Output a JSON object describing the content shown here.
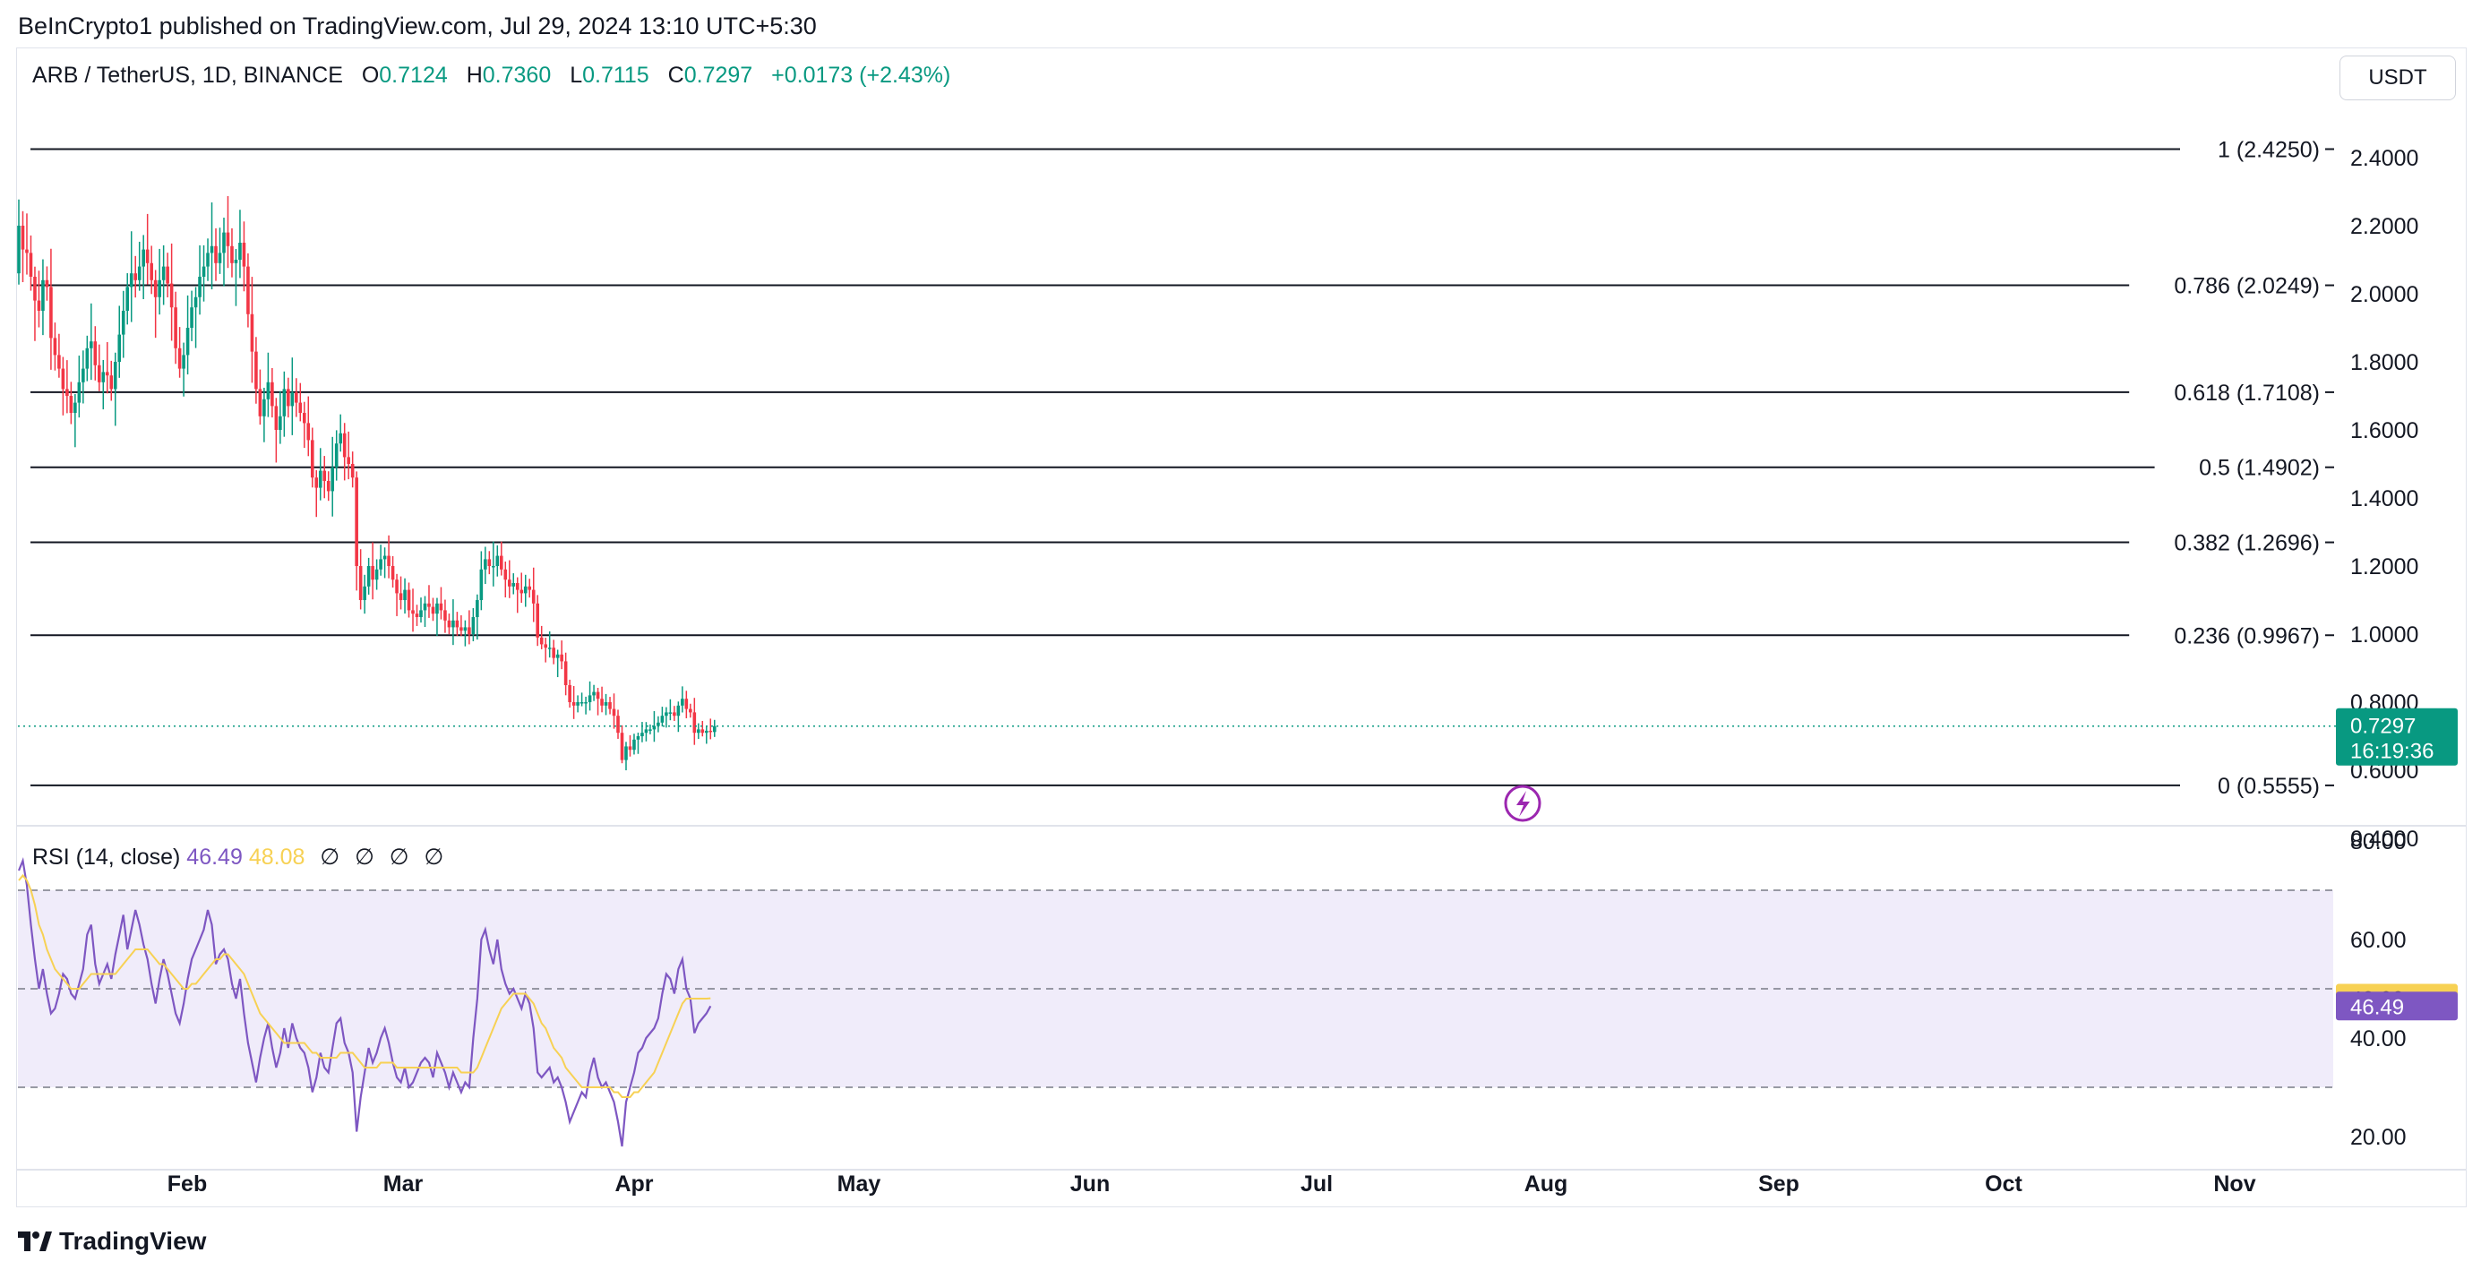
{
  "publisher_line": "BeInCrypto1 published on TradingView.com, Jul 29, 2024 13:10 UTC+5:30",
  "symbol": {
    "name": "ARB / TetherUS, 1D, BINANCE",
    "open_label": "O",
    "open": "0.7124",
    "high_label": "H",
    "high": "0.7360",
    "low_label": "L",
    "low": "0.7115",
    "close_label": "C",
    "close": "0.7297",
    "change": "+0.0173 (+2.43%)"
  },
  "unit_button": "USDT",
  "footer_brand": "TradingView",
  "colors": {
    "up": "#089981",
    "down": "#f23645",
    "rsi": "#7e57c2",
    "rsi_ma": "#f7d154",
    "rsi_band": "#f0ecfa",
    "price_tag": "#089981"
  },
  "chart_data": [
    {
      "type": "candlestick",
      "symbol": "ARB / TetherUS",
      "interval": "1D",
      "exchange": "BINANCE",
      "y_scale": "linear",
      "ylim": [
        0.4,
        2.5
      ],
      "y_ticks": [
        "2.4000",
        "2.2000",
        "2.0000",
        "1.8000",
        "1.6000",
        "1.4000",
        "1.2000",
        "1.0000",
        "0.8000",
        "0.6000",
        "0.4000"
      ],
      "x_ticks": [
        "Feb",
        "Mar",
        "Apr",
        "May",
        "Jun",
        "Jul",
        "Aug",
        "Sep",
        "Oct",
        "Nov"
      ],
      "last_price": "0.7297",
      "countdown": "16:19:36",
      "fib_levels": [
        {
          "ratio": 1,
          "price": 2.425,
          "label": "1 (2.4250)"
        },
        {
          "ratio": 0.786,
          "price": 2.0249,
          "label": "0.786 (2.0249)"
        },
        {
          "ratio": 0.618,
          "price": 1.7108,
          "label": "0.618 (1.7108)"
        },
        {
          "ratio": 0.5,
          "price": 1.4902,
          "label": "0.5 (1.4902)"
        },
        {
          "ratio": 0.382,
          "price": 1.2696,
          "label": "0.382 (1.2696)"
        },
        {
          "ratio": 0.236,
          "price": 0.9967,
          "label": "0.236 (0.9967)"
        },
        {
          "ratio": 0,
          "price": 0.5555,
          "label": "0 (0.5555)"
        }
      ],
      "closes": [
        2.2,
        2.13,
        2.12,
        2.05,
        1.98,
        1.95,
        2.04,
        2.02,
        1.87,
        1.82,
        1.78,
        1.72,
        1.7,
        1.65,
        1.68,
        1.74,
        1.78,
        1.84,
        1.86,
        1.79,
        1.74,
        1.77,
        1.76,
        1.72,
        1.8,
        1.88,
        1.95,
        2.02,
        2.06,
        2.04,
        2.08,
        2.13,
        2.09,
        2.04,
        1.99,
        2.04,
        2.08,
        2.03,
        1.96,
        1.84,
        1.78,
        1.82,
        1.9,
        1.96,
        1.99,
        2.05,
        2.08,
        2.12,
        2.14,
        2.09,
        2.12,
        2.18,
        2.14,
        2.09,
        2.1,
        2.15,
        2.08,
        1.94,
        1.83,
        1.72,
        1.64,
        1.69,
        1.74,
        1.67,
        1.6,
        1.64,
        1.72,
        1.67,
        1.71,
        1.68,
        1.65,
        1.62,
        1.57,
        1.46,
        1.43,
        1.48,
        1.45,
        1.42,
        1.49,
        1.56,
        1.59,
        1.52,
        1.5,
        1.46,
        1.2,
        1.1,
        1.14,
        1.2,
        1.16,
        1.19,
        1.22,
        1.23,
        1.2,
        1.16,
        1.12,
        1.1,
        1.13,
        1.07,
        1.06,
        1.05,
        1.07,
        1.09,
        1.08,
        1.06,
        1.09,
        1.07,
        1.04,
        1.02,
        1.04,
        1.02,
        1.01,
        1.02,
        1.0,
        1.05,
        1.1,
        1.19,
        1.22,
        1.2,
        1.2,
        1.23,
        1.19,
        1.16,
        1.14,
        1.15,
        1.13,
        1.12,
        1.14,
        1.13,
        1.09,
        0.99,
        0.97,
        0.96,
        0.96,
        0.93,
        0.94,
        0.92,
        0.85,
        0.8,
        0.79,
        0.8,
        0.8,
        0.8,
        0.82,
        0.83,
        0.81,
        0.79,
        0.8,
        0.78,
        0.76,
        0.71,
        0.63,
        0.67,
        0.66,
        0.69,
        0.7,
        0.71,
        0.72,
        0.72,
        0.73,
        0.74,
        0.76,
        0.77,
        0.77,
        0.76,
        0.79,
        0.81,
        0.78,
        0.77,
        0.71,
        0.72,
        0.71,
        0.716,
        0.7124,
        0.7297
      ]
    },
    {
      "type": "line",
      "title": "RSI (14, close)",
      "indicator_params": [
        "∅",
        "∅",
        "∅",
        "∅"
      ],
      "ylim": [
        13.7,
        81.5
      ],
      "y_ticks": [
        "80.00",
        "60.00",
        "40.00",
        "20.00"
      ],
      "levels": {
        "upper": 70,
        "middle": 50,
        "lower": 30
      },
      "last_rsi": "46.49",
      "last_rsi_ma": "48.08",
      "series": [
        {
          "name": "RSI",
          "color": "#7e57c2",
          "values": [
            74,
            76,
            71,
            63,
            56,
            50,
            54,
            49,
            45,
            46,
            49,
            53,
            52,
            49,
            48,
            51,
            54,
            61,
            63,
            55,
            51,
            53,
            55,
            52,
            57,
            61,
            65,
            58,
            62,
            66,
            63,
            59,
            56,
            51,
            47,
            52,
            56,
            53,
            49,
            45,
            43,
            47,
            52,
            56,
            58,
            60,
            62,
            66,
            63,
            55,
            57,
            58,
            56,
            51,
            48,
            52,
            45,
            39,
            35,
            31,
            36,
            40,
            43,
            38,
            34,
            37,
            42,
            38,
            43,
            40,
            38,
            37,
            34,
            29,
            32,
            37,
            34,
            33,
            38,
            43,
            44,
            39,
            37,
            33,
            21,
            28,
            33,
            38,
            35,
            37,
            40,
            42,
            39,
            35,
            32,
            31,
            34,
            30,
            31,
            33,
            35,
            36,
            35,
            32,
            37,
            35,
            33,
            30,
            33,
            31,
            29,
            31,
            30,
            40,
            48,
            60,
            62,
            58,
            55,
            60,
            54,
            51,
            49,
            50,
            48,
            46,
            49,
            47,
            42,
            33,
            32,
            33,
            34,
            31,
            32,
            30,
            27,
            23,
            25,
            27,
            29,
            28,
            33,
            36,
            32,
            30,
            31,
            29,
            27,
            23,
            18,
            27,
            30,
            33,
            37,
            38,
            40,
            41,
            42,
            44,
            49,
            53,
            52,
            49,
            54,
            56,
            50,
            48,
            41,
            43,
            44,
            45,
            46.49
          ]
        },
        {
          "name": "RSI-based MA",
          "color": "#f7d154",
          "values": [
            72,
            73,
            72,
            70,
            67,
            63,
            61,
            58,
            56,
            54,
            53,
            52,
            51,
            50,
            50,
            50,
            51,
            52,
            53,
            53,
            53,
            53,
            53,
            53,
            53,
            54,
            55,
            56,
            57,
            58,
            58,
            58,
            58,
            57,
            56,
            55,
            55,
            54,
            53,
            52,
            51,
            50,
            50,
            51,
            51,
            52,
            53,
            54,
            55,
            56,
            56,
            57,
            57,
            56,
            55,
            54,
            53,
            51,
            49,
            47,
            45,
            44,
            43,
            42,
            41,
            40,
            39,
            39,
            39,
            39,
            39,
            39,
            38,
            37,
            37,
            36,
            36,
            36,
            36,
            36,
            37,
            37,
            37,
            37,
            36,
            35,
            34,
            34,
            34,
            34,
            35,
            35,
            35,
            35,
            34,
            34,
            34,
            34,
            34,
            34,
            34,
            34,
            34,
            34,
            34,
            34,
            34,
            34,
            34,
            34,
            33,
            33,
            33,
            33,
            34,
            36,
            38,
            40,
            42,
            44,
            46,
            47,
            48,
            49,
            49,
            49,
            49,
            48,
            47,
            45,
            43,
            42,
            40,
            38,
            37,
            36,
            34,
            33,
            32,
            31,
            30,
            30,
            30,
            30,
            30,
            30,
            30,
            30,
            29,
            29,
            28,
            28,
            28,
            29,
            29,
            30,
            31,
            32,
            33,
            35,
            37,
            39,
            41,
            43,
            45,
            47,
            48,
            48,
            48,
            48,
            48,
            48,
            48.08
          ]
        }
      ]
    }
  ]
}
